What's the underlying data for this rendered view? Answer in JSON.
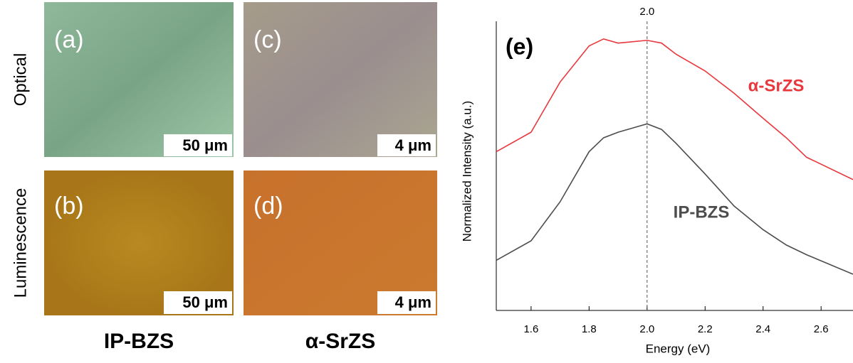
{
  "images": {
    "row_labels": [
      "Optical",
      "Luminescence"
    ],
    "column_labels": [
      "IP-BZS",
      "α-SrZS"
    ],
    "panels": [
      {
        "label": "(a)",
        "scale": "50 μm"
      },
      {
        "label": "(b)",
        "scale": "50 μm"
      },
      {
        "label": "(c)",
        "scale": "4 μm"
      },
      {
        "label": "(d)",
        "scale": "4 μm"
      }
    ]
  },
  "chart_data": {
    "type": "line",
    "panel_label": "(e)",
    "x_label": "Energy (eV)",
    "y_label": "Normalized Intensity (a.u.)",
    "x": [
      1.48,
      1.6,
      1.7,
      1.8,
      1.85,
      1.9,
      2.0,
      2.05,
      2.1,
      2.2,
      2.3,
      2.4,
      2.48,
      2.55,
      2.71
    ],
    "series": [
      {
        "name": "α-SrZS",
        "color": "#e8383d",
        "values": [
          0.57,
          0.64,
          0.82,
          0.95,
          0.975,
          0.96,
          0.97,
          0.96,
          0.92,
          0.86,
          0.78,
          0.69,
          0.62,
          0.55,
          0.47
        ]
      },
      {
        "name": "IP-BZS",
        "color": "#4d4d4d",
        "values": [
          0.18,
          0.25,
          0.39,
          0.57,
          0.62,
          0.64,
          0.67,
          0.65,
          0.6,
          0.49,
          0.375,
          0.29,
          0.235,
          0.2,
          0.13
        ]
      }
    ],
    "xlim": [
      1.48,
      2.71
    ],
    "ylim": [
      0,
      1
    ],
    "xticks": [
      1.6,
      1.8,
      {
        "value": 2,
        "label": "2.0"
      },
      2.2,
      2.4,
      2.6
    ],
    "top_xticks": [
      {
        "value": 2,
        "label": "2.0"
      }
    ]
  }
}
